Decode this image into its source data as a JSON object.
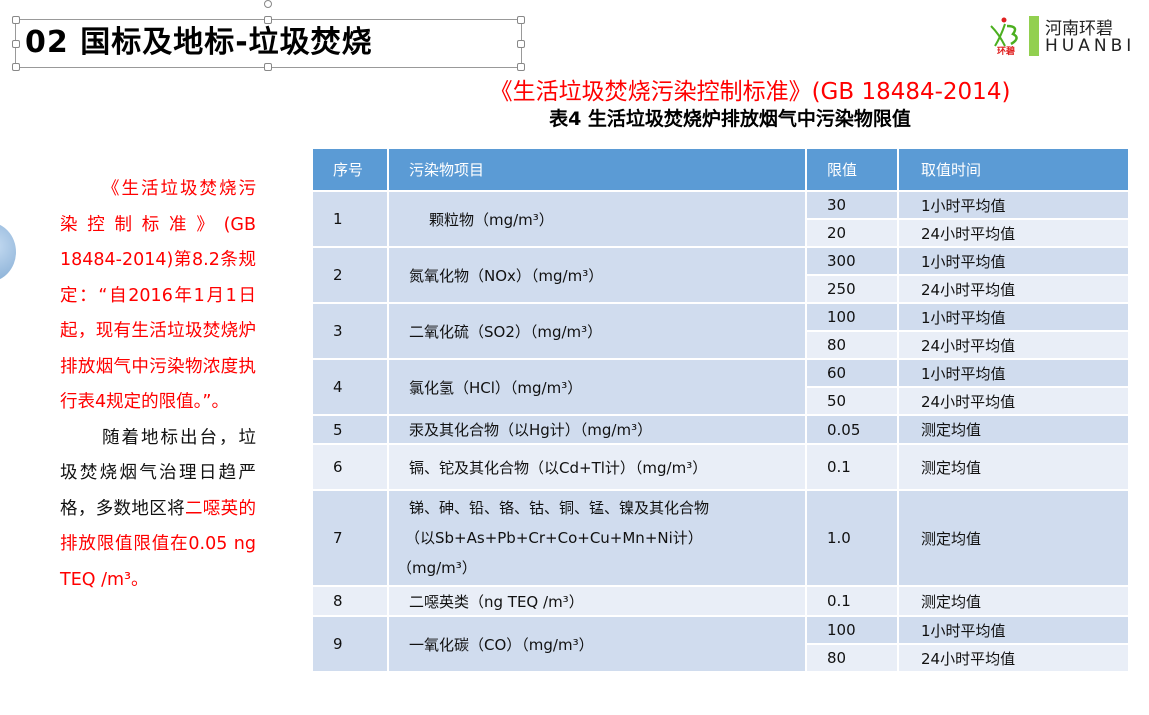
{
  "slide": {
    "title": "02  国标及地标-垃圾焚烧",
    "logo": {
      "cn": "河南环碧",
      "en": "HUANBI",
      "mark_text": "环碧",
      "bar_color": "#92d050"
    },
    "standard_title": "《生活垃圾焚烧污染控制标准》(GB 18484-2014)",
    "table_title": "表4 生活垃圾焚烧炉排放烟气中污染物限值"
  },
  "sidebar": {
    "para1": "《生活垃圾焚烧污染控制标准》(GB 18484-2014)第8.2条规定：“自2016年1月1日起，现有生活垃圾焚烧炉排放烟气中污染物浓度执行表4规定的限值。”。",
    "para2_black": "随着地标出台，垃圾焚烧烟气治理日趋严格，多数地区将",
    "para2_red": "二噁英的排放限值限值在0.05 ng TEQ /m³。"
  },
  "table": {
    "headers": [
      "序号",
      "污染物项目",
      "限值",
      "取值时间"
    ],
    "header_color": "#5b9bd5",
    "rows": [
      {
        "no": "1",
        "item": "颗粒物（mg/m³）",
        "limits": [
          {
            "value": "30",
            "time": "1小时平均值"
          },
          {
            "value": "20",
            "time": "24小时平均值"
          }
        ]
      },
      {
        "no": "2",
        "item": "氮氧化物（NOx）（mg/m³）",
        "limits": [
          {
            "value": "300",
            "time": "1小时平均值"
          },
          {
            "value": "250",
            "time": "24小时平均值"
          }
        ]
      },
      {
        "no": "3",
        "item": "二氧化硫（SO2）（mg/m³）",
        "limits": [
          {
            "value": "100",
            "time": "1小时平均值"
          },
          {
            "value": "80",
            "time": "24小时平均值"
          }
        ]
      },
      {
        "no": "4",
        "item": "氯化氢（HCl）（mg/m³）",
        "limits": [
          {
            "value": "60",
            "time": "1小时平均值"
          },
          {
            "value": "50",
            "time": "24小时平均值"
          }
        ]
      },
      {
        "no": "5",
        "item": "汞及其化合物（以Hg计）（mg/m³）",
        "limits": [
          {
            "value": "0.05",
            "time": "测定均值"
          }
        ]
      },
      {
        "no": "6",
        "item": "镉、铊及其化合物（以Cd+Tl计）（mg/m³）",
        "limits": [
          {
            "value": "0.1",
            "time": "测定均值"
          }
        ]
      },
      {
        "no": "7",
        "item_lines": [
          "锑、砷、铅、铬、钴、铜、锰、镍及其化合物",
          "（以Sb+As+Pb+Cr+Co+Cu+Mn+Ni计）",
          "（mg/m³）"
        ],
        "limits": [
          {
            "value": "1.0",
            "time": "测定均值"
          }
        ]
      },
      {
        "no": "8",
        "item": "二噁英类（ng TEQ /m³）",
        "limits": [
          {
            "value": "0.1",
            "time": "测定均值"
          }
        ]
      },
      {
        "no": "9",
        "item": "一氧化碳（CO）（mg/m³）",
        "limits": [
          {
            "value": "100",
            "time": "1小时平均值"
          },
          {
            "value": "80",
            "time": "24小时平均值"
          }
        ]
      }
    ]
  }
}
